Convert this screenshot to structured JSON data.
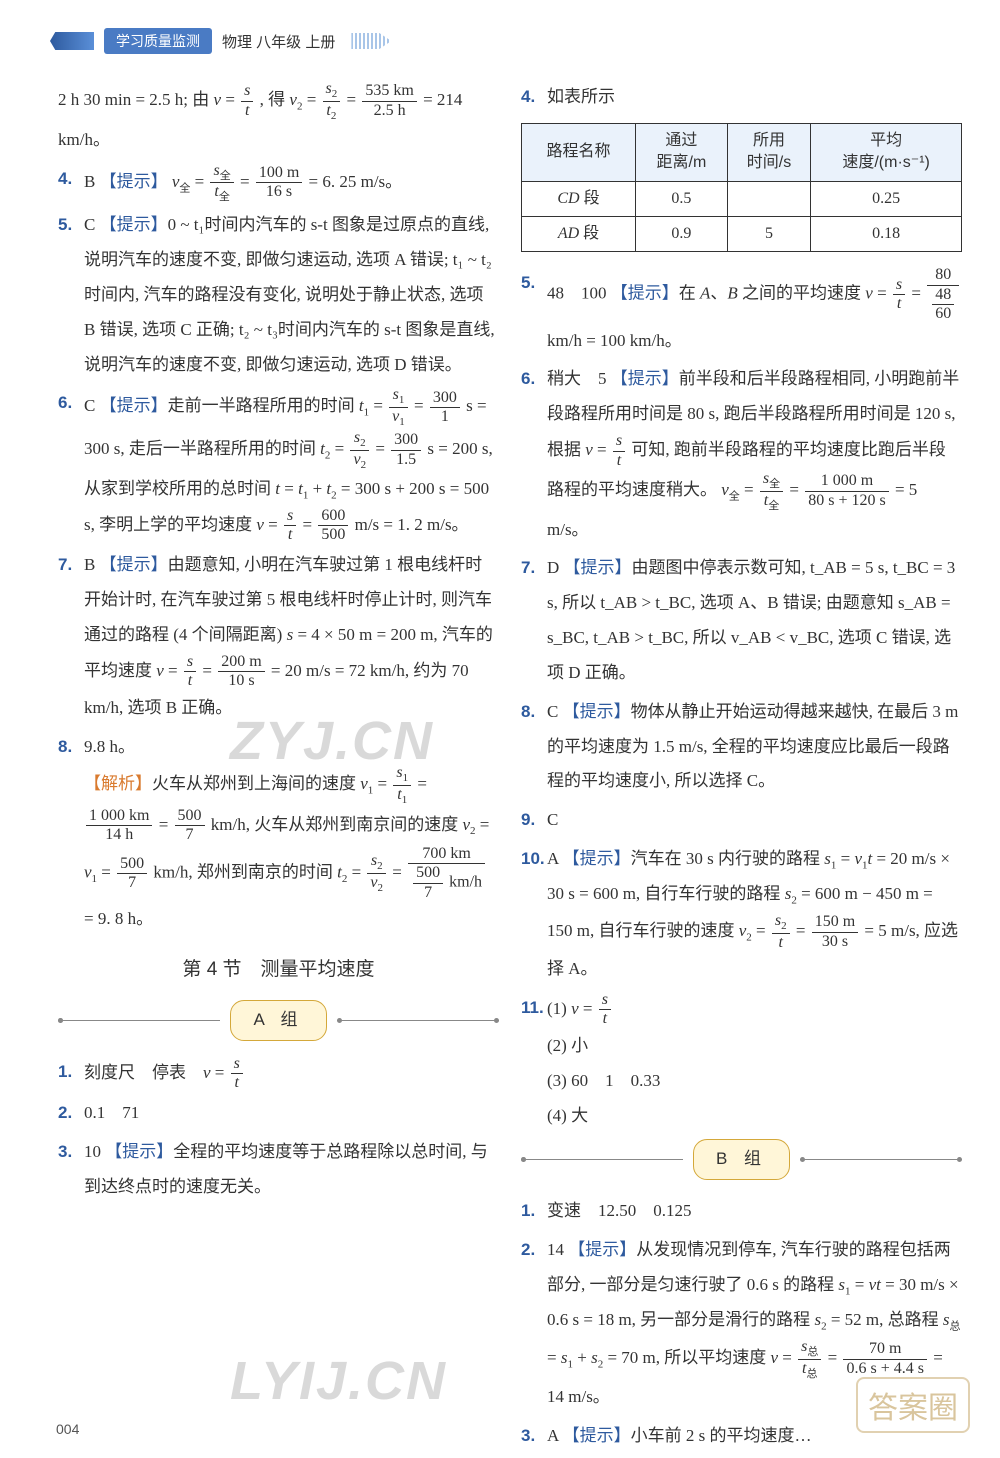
{
  "header": {
    "badge": "学习质量监测",
    "subject": "物理  八年级  上册"
  },
  "pagenum": "004",
  "watermarks": {
    "w1": "ZYJ.CN",
    "w2": "LYIJ.CN",
    "corner": "答案圈"
  },
  "left": {
    "pre": "2 h 30 min = 2.5 h; 由 v = s/t , 得 v₂ = s₂/t₂ = 535 km / 2.5 h = 214 km/h。",
    "q4": {
      "ans": "B",
      "hint": "【提示】",
      "text": "v全 = s全/t全 = 100 m / 16 s = 6.25 m/s。"
    },
    "q5": {
      "ans": "C",
      "hint": "【提示】",
      "text": "0 ~ t₁时间内汽车的 s-t 图象是过原点的直线, 说明汽车的速度不变, 即做匀速运动, 选项 A 错误; t₁ ~ t₂时间内, 汽车的路程没有变化, 说明处于静止状态, 选项 B 错误, 选项 C 正确; t₂ ~ t₃时间内汽车的 s-t 图象是直线, 说明汽车的速度不变, 即做匀速运动, 选项 D 错误。"
    },
    "q6": {
      "ans": "C",
      "hint": "【提示】",
      "text": "走前一半路程所用的时间 t₁ = s₁/v₁ = 300/1 s = 300 s, 走后一半路程所用的时间 t₂ = s₂/v₂ = 300/1.5 s = 200 s, 从家到学校所用的总时间 t = t₁ + t₂ = 300 s + 200 s = 500 s, 李明上学的平均速度 v = s/t = 600/500 m/s = 1.2 m/s。"
    },
    "q7": {
      "ans": "B",
      "hint": "【提示】",
      "text": "由题意知, 小明在汽车驶过第 1 根电线杆时开始计时, 在汽车驶过第 5 根电线杆时停止计时, 则汽车通过的路程 (4 个间隔距离) s = 4 × 50 m = 200 m, 汽车的平均速度 v = s/t = 200 m / 10 s = 20 m/s = 72 km/h, 约为 70 km/h, 选项 B 正确。"
    },
    "q8": {
      "ans": "9.8 h。",
      "hint": "【解析】",
      "text": "火车从郑州到上海间的速度 v₁ = s₁/t₁ = 1 000 km / 14 h = 500/7 km/h, 火车从郑州到南京间的速度 v₂ = v₁ = 500/7 km/h, 郑州到南京的时间 t₂ = s₂/v₂ = 700 km / (500/7 km/h) = 9.8 h。"
    },
    "section4_title": "第 4 节　测量平均速度",
    "groupA": "A  组",
    "a1": "刻度尺　停表　v = s/t",
    "a2": "0.1　71",
    "a3": {
      "ans": "10",
      "hint": "【提示】",
      "text": "全程的平均速度等于总路程除以总时间, 与到达终点时的速度无关。"
    }
  },
  "right": {
    "q4_title": "如表所示",
    "table": {
      "headers": [
        "路程名称",
        "通过\n距离/m",
        "所用\n时间/s",
        "平均\n速度/(m·s⁻¹)"
      ],
      "rows": [
        [
          "CD 段",
          "0.5",
          "",
          "0.25"
        ],
        [
          "AD 段",
          "0.9",
          "5",
          "0.18"
        ]
      ]
    },
    "q5": {
      "ans": "48　100",
      "hint": "【提示】",
      "text": "在 A、B 之间的平均速度 v = s/t = 80 / (48/60) km/h = 100 km/h。"
    },
    "q6": {
      "ans": "稍大　5",
      "hint": "【提示】",
      "text": "前半段和后半段路程相同, 小明跑前半段路程所用时间是 80 s, 跑后半段路程所用时间是 120 s, 根据 v = s/t 可知, 跑前半段路程的平均速度比跑后半段路程的平均速度稍大。 v全 = s全/t全 = 1 000 m / (80 s + 120 s) = 5 m/s。"
    },
    "q7": {
      "ans": "D",
      "hint": "【提示】",
      "text": "由题图中停表示数可知, t_AB = 5 s, t_BC = 3 s, 所以 t_AB > t_BC, 选项 A、B 错误; 由题意知 s_AB = s_BC, t_AB > t_BC, 所以 v_AB < v_BC, 选项 C 错误, 选项 D 正确。"
    },
    "q8": {
      "ans": "C",
      "hint": "【提示】",
      "text": "物体从静止开始运动得越来越快, 在最后 3 m 的平均速度为 1.5 m/s, 全程的平均速度应比最后一段路程的平均速度小, 所以选择 C。"
    },
    "q9": "C",
    "q10": {
      "ans": "A",
      "hint": "【提示】",
      "text": "汽车在 30 s 内行驶的路程 s₁ = v₁t = 20 m/s × 30 s = 600 m, 自行车行驶的路程 s₂ = 600 m − 450 m = 150 m, 自行车行驶的速度 v₂ = s₂/t = 150 m / 30 s = 5 m/s, 应选择 A。"
    },
    "q11": {
      "l1": "(1) v = s/t",
      "l2": "(2) 小",
      "l3": "(3) 60　1　0.33",
      "l4": "(4) 大"
    },
    "groupB": "B  组",
    "b1": "变速　12.50　0.125",
    "b2": {
      "ans": "14",
      "hint": "【提示】",
      "text": "从发现情况到停车, 汽车行驶的路程包括两部分, 一部分是匀速行驶了 0.6 s 的路程 s₁ = vt = 30 m/s × 0.6 s = 18 m, 另一部分是滑行的路程 s₂ = 52 m, 总路程 s总 = s₁ + s₂ = 70 m, 所以平均速度 v = s总/t总 = 70 m / (0.6 s + 4.4 s) = 14 m/s。"
    },
    "b3": {
      "ans": "A",
      "hint": "【提示】",
      "text": "小车前 2 s 的平均速度…"
    }
  }
}
